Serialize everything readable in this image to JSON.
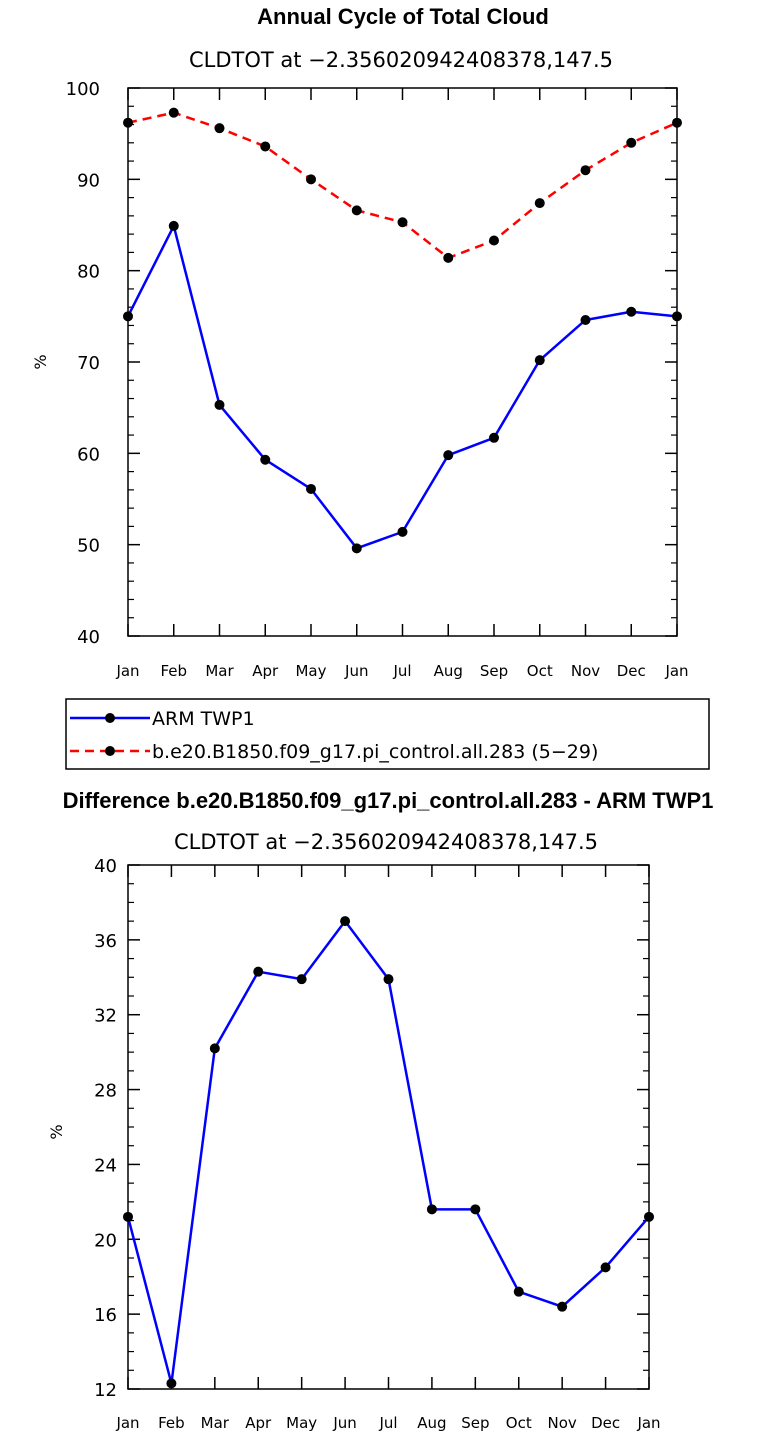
{
  "chart_data": [
    {
      "type": "line",
      "title": "Annual Cycle of Total Cloud",
      "subtitle": "CLDTOT at −2.356020942408378,147.5",
      "xlabel": "",
      "ylabel": "%",
      "ylim": [
        40,
        100
      ],
      "yticks": [
        40,
        50,
        60,
        70,
        80,
        90,
        100
      ],
      "categories": [
        "Jan",
        "Feb",
        "Mar",
        "Apr",
        "May",
        "Jun",
        "Jul",
        "Aug",
        "Sep",
        "Oct",
        "Nov",
        "Dec",
        "Jan"
      ],
      "series": [
        {
          "name": "ARM TWP1",
          "color": "#0000ff",
          "dash": "solid",
          "values": [
            75.0,
            84.9,
            65.3,
            59.3,
            56.1,
            49.6,
            51.4,
            59.8,
            61.7,
            70.2,
            74.6,
            75.5,
            75.0
          ]
        },
        {
          "name": "b.e20.B1850.f09_g17.pi_control.all.283 (5−29)",
          "color": "#ff0000",
          "dash": "dashed",
          "values": [
            96.2,
            97.3,
            95.6,
            93.6,
            90.0,
            86.6,
            85.3,
            81.4,
            83.3,
            87.4,
            91.0,
            94.0,
            96.2
          ]
        }
      ],
      "legend": {
        "position": "below",
        "entries": [
          "ARM TWP1",
          "b.e20.B1850.f09_g17.pi_control.all.283 (5−29)"
        ]
      }
    },
    {
      "type": "line",
      "title": "Difference b.e20.B1850.f09_g17.pi_control.all.283 - ARM TWP1",
      "subtitle": "CLDTOT at −2.356020942408378,147.5",
      "xlabel": "",
      "ylabel": "%",
      "ylim": [
        12,
        40
      ],
      "yticks": [
        12,
        16,
        20,
        24,
        28,
        32,
        36,
        40
      ],
      "categories": [
        "Jan",
        "Feb",
        "Mar",
        "Apr",
        "May",
        "Jun",
        "Jul",
        "Aug",
        "Sep",
        "Oct",
        "Nov",
        "Dec",
        "Jan"
      ],
      "series": [
        {
          "name": "Difference",
          "color": "#0000ff",
          "dash": "solid",
          "values": [
            21.2,
            12.3,
            30.2,
            34.3,
            33.9,
            37.0,
            33.9,
            21.6,
            21.6,
            17.2,
            16.4,
            18.5,
            21.2
          ]
        }
      ]
    }
  ]
}
